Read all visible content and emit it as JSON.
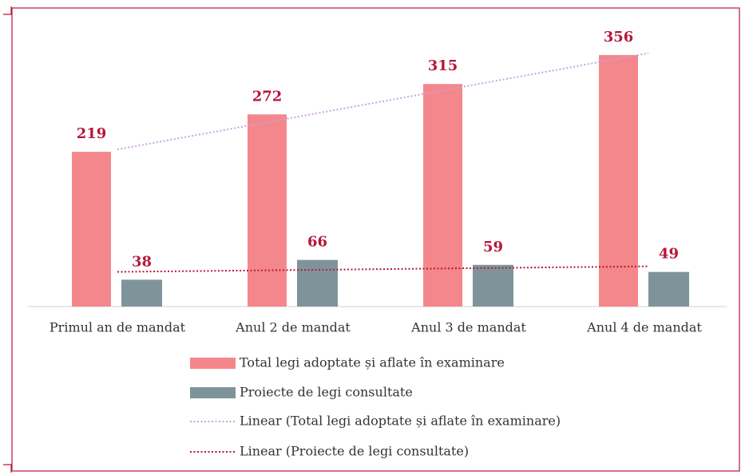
{
  "chart_data": {
    "type": "bar",
    "categories": [
      "Primul an de mandat",
      "Anul 2 de mandat",
      "Anul 3 de mandat",
      "Anul 4 de mandat"
    ],
    "series": [
      {
        "name": "Total legi adoptate și aflate în examinare",
        "color": "#f4878b",
        "values": [
          219,
          272,
          315,
          356
        ]
      },
      {
        "name": "Proiecte de legi consultate",
        "color": "#7f949a",
        "values": [
          38,
          66,
          59,
          49
        ]
      }
    ],
    "trendlines": [
      {
        "name": "Linear (Total legi adoptate și aflate în examinare)",
        "color": "#c9a3dc",
        "series": 0
      },
      {
        "name": "Linear (Proiecte de legi consultate)",
        "color": "#b5173a",
        "series": 1
      }
    ],
    "label_color": "#b5173a",
    "ylim": [
      0,
      400
    ]
  }
}
